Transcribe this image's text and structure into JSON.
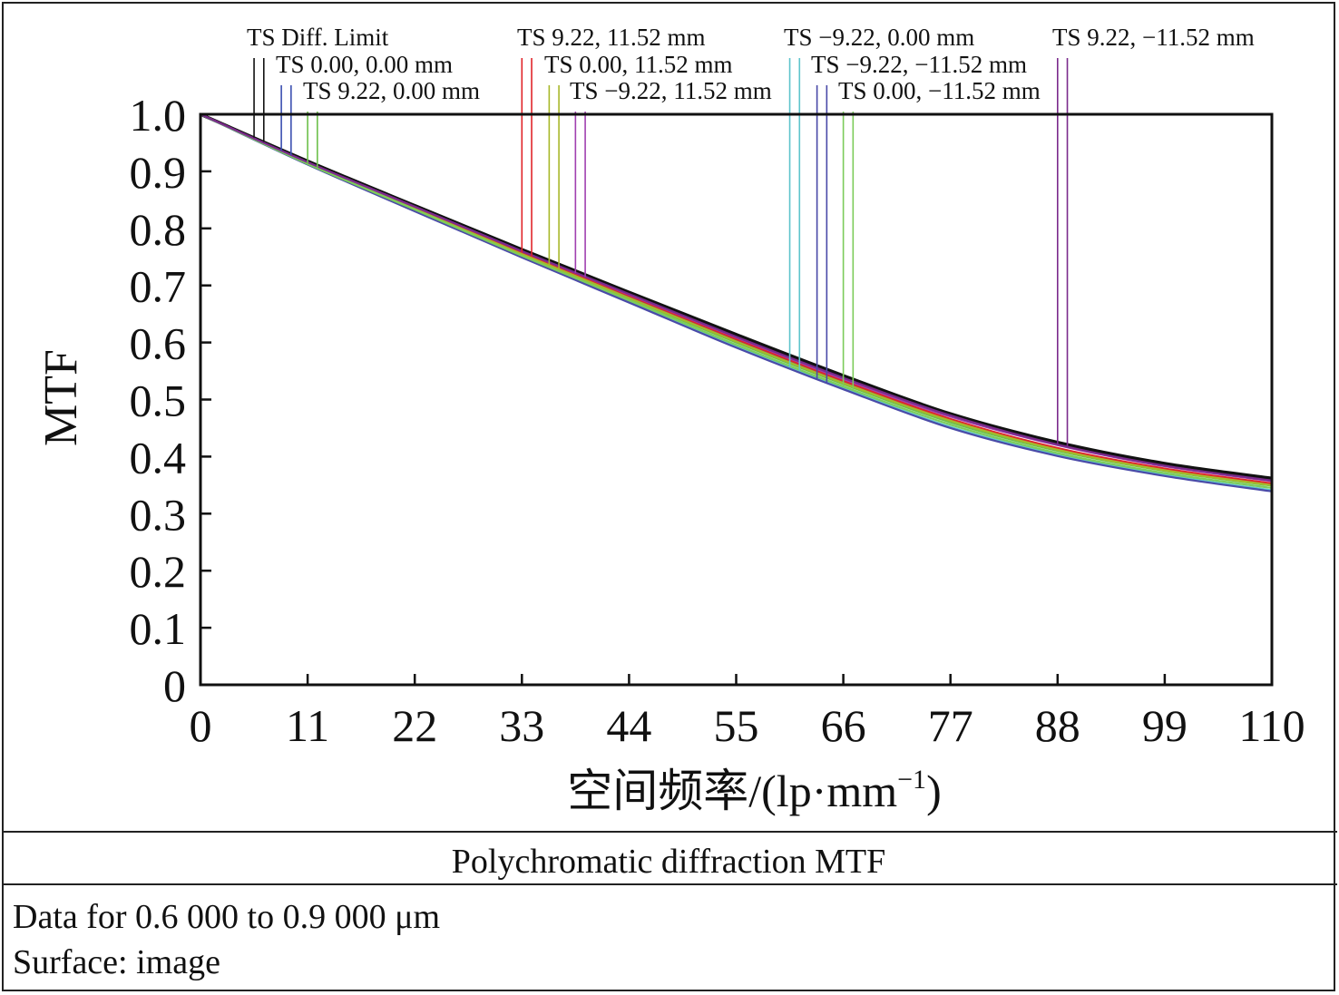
{
  "chart_data": {
    "type": "line",
    "xlabel": "空间频率/(lp·mm",
    "xlabel_sup": "−1",
    "xlabel_tail": ")",
    "ylabel": "MTF",
    "xlim": [
      0,
      110
    ],
    "ylim": [
      0,
      1.0
    ],
    "x_ticks": [
      "0",
      "11",
      "22",
      "33",
      "44",
      "55",
      "66",
      "77",
      "88",
      "99",
      "110"
    ],
    "y_ticks": [
      "0",
      "0.1",
      "0.2",
      "0.3",
      "0.4",
      "0.5",
      "0.6",
      "0.7",
      "0.8",
      "0.9",
      "1.0"
    ],
    "x": [
      0,
      11,
      22,
      33,
      44,
      55,
      66,
      77,
      88,
      99,
      110
    ],
    "grid": false,
    "series": [
      {
        "name": "TS Diff. Limit",
        "color": "#111111",
        "marker_x": [
          5.5,
          6.5
        ],
        "values": [
          1.0,
          0.918,
          0.84,
          0.763,
          0.688,
          0.614,
          0.542,
          0.475,
          0.425,
          0.388,
          0.362
        ]
      },
      {
        "name": "TS 0.00, 0.00 mm",
        "color": "#3a4fb0",
        "marker_x": [
          8.3,
          9.3
        ],
        "values": [
          1.0,
          0.915,
          0.836,
          0.757,
          0.681,
          0.605,
          0.532,
          0.465,
          0.414,
          0.378,
          0.352
        ]
      },
      {
        "name": "TS 9.22, 0.00 mm",
        "color": "#6cc04a",
        "marker_x": [
          11.0,
          12.0
        ],
        "values": [
          1.0,
          0.914,
          0.834,
          0.754,
          0.677,
          0.6,
          0.527,
          0.46,
          0.41,
          0.375,
          0.349
        ]
      },
      {
        "name": "TS 9.22, 11.52 mm",
        "color": "#e0242a",
        "marker_x": [
          33.0,
          34.0
        ],
        "values": [
          1.0,
          0.915,
          0.836,
          0.758,
          0.682,
          0.606,
          0.533,
          0.466,
          0.415,
          0.379,
          0.353
        ]
      },
      {
        "name": "TS 0.00, 11.52 mm",
        "color": "#a8b82a",
        "marker_x": [
          35.8,
          36.8
        ],
        "values": [
          1.0,
          0.914,
          0.834,
          0.755,
          0.678,
          0.602,
          0.529,
          0.463,
          0.412,
          0.376,
          0.35
        ]
      },
      {
        "name": "TS −9.22, 11.52 mm",
        "color": "#a040b0",
        "marker_x": [
          38.5,
          39.5
        ],
        "values": [
          1.0,
          0.916,
          0.838,
          0.76,
          0.684,
          0.609,
          0.536,
          0.47,
          0.42,
          0.383,
          0.357
        ]
      },
      {
        "name": "TS −9.22, 0.00 mm",
        "color": "#5ec4cc",
        "marker_x": [
          60.5,
          61.5
        ],
        "values": [
          1.0,
          0.912,
          0.831,
          0.75,
          0.672,
          0.593,
          0.52,
          0.452,
          0.403,
          0.368,
          0.341
        ]
      },
      {
        "name": "TS −9.22, −11.52 mm",
        "color": "#4a4aa8",
        "marker_x": [
          63.3,
          64.3
        ],
        "values": [
          1.0,
          0.912,
          0.83,
          0.749,
          0.67,
          0.591,
          0.518,
          0.45,
          0.401,
          0.366,
          0.339
        ]
      },
      {
        "name": "TS 0.00, −11.52 mm",
        "color": "#7ccc5a",
        "marker_x": [
          66.0,
          67.0
        ],
        "values": [
          1.0,
          0.913,
          0.833,
          0.752,
          0.674,
          0.596,
          0.523,
          0.456,
          0.406,
          0.371,
          0.345
        ]
      },
      {
        "name": "TS 9.22, −11.52 mm",
        "color": "#7a2a8c",
        "marker_x": [
          88.0,
          89.0
        ],
        "values": [
          1.0,
          0.916,
          0.838,
          0.76,
          0.685,
          0.61,
          0.538,
          0.472,
          0.421,
          0.384,
          0.358
        ]
      }
    ]
  },
  "caption": "Polychromatic diffraction MTF",
  "info": {
    "line1": "Data for 0.6 000 to 0.9 000 μm",
    "line2": "Surface: image"
  }
}
